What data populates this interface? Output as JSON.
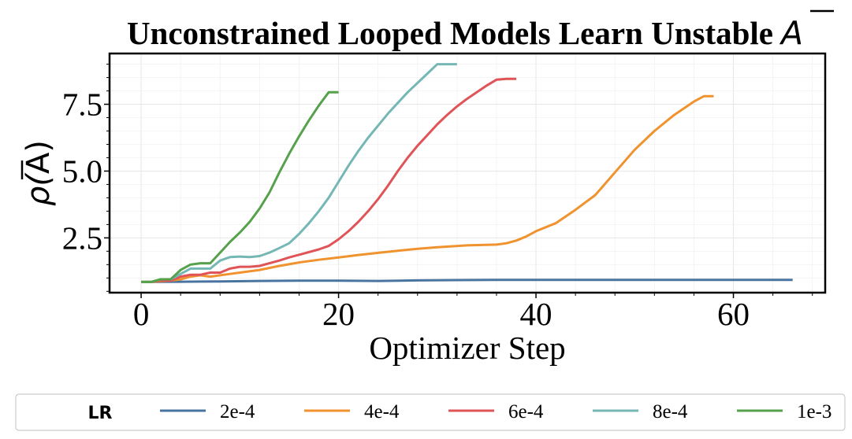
{
  "chart_data": {
    "type": "line",
    "title": "Unconstrained Looped Models Learn Unstable",
    "title_symbol": "A",
    "xlabel": "Optimizer Step",
    "ylabel_prefix": "ρ(",
    "ylabel_symbol": "A",
    "ylabel_suffix": ")",
    "xlim": [
      -3.2,
      69.3
    ],
    "ylim": [
      0.45,
      9.4
    ],
    "xticks": [
      0,
      20,
      40,
      60
    ],
    "xtick_labels": [
      "0",
      "20",
      "40",
      "60"
    ],
    "yticks": [
      2.5,
      5.0,
      7.5
    ],
    "ytick_labels": [
      "2.5",
      "5.0",
      "7.5"
    ],
    "grid": true,
    "legend": {
      "title": "LR",
      "placement": "bottom-center"
    },
    "series": [
      {
        "name": "2e-4",
        "color": "#4a74a0",
        "x": [
          0,
          4,
          8,
          12,
          16,
          20,
          24,
          28,
          32,
          36,
          40,
          44,
          48,
          52,
          56,
          60,
          66
        ],
        "y": [
          0.85,
          0.86,
          0.87,
          0.89,
          0.9,
          0.9,
          0.89,
          0.91,
          0.92,
          0.93,
          0.93,
          0.93,
          0.93,
          0.93,
          0.93,
          0.93,
          0.93
        ]
      },
      {
        "name": "4e-4",
        "color": "#f0922e",
        "x": [
          0,
          1,
          2,
          3,
          4,
          5,
          6,
          7,
          8,
          9,
          10,
          12,
          14,
          16,
          18,
          20,
          22,
          24,
          26,
          28,
          30,
          33,
          36,
          37,
          38,
          39,
          40,
          42,
          44,
          46,
          48,
          50,
          52,
          54,
          56,
          57,
          58
        ],
        "y": [
          0.85,
          0.85,
          0.88,
          0.9,
          0.95,
          1.05,
          1.1,
          1.05,
          1.1,
          1.15,
          1.2,
          1.3,
          1.45,
          1.58,
          1.68,
          1.77,
          1.86,
          1.94,
          2.02,
          2.09,
          2.15,
          2.22,
          2.25,
          2.3,
          2.4,
          2.55,
          2.75,
          3.05,
          3.55,
          4.1,
          4.95,
          5.8,
          6.5,
          7.1,
          7.6,
          7.8,
          7.8
        ]
      },
      {
        "name": "6e-4",
        "color": "#e05357",
        "x": [
          0,
          1,
          2,
          3,
          4,
          5,
          6,
          7,
          8,
          9,
          10,
          11,
          12,
          13,
          14,
          15,
          16,
          17,
          18,
          19,
          20,
          21,
          22,
          23,
          24,
          25,
          26,
          27,
          28,
          29,
          30,
          31,
          32,
          33,
          34,
          35,
          36,
          37,
          38
        ],
        "y": [
          0.85,
          0.85,
          0.9,
          0.9,
          1.05,
          1.12,
          1.12,
          1.2,
          1.2,
          1.35,
          1.42,
          1.42,
          1.45,
          1.55,
          1.65,
          1.77,
          1.87,
          1.97,
          2.07,
          2.2,
          2.45,
          2.75,
          3.1,
          3.5,
          3.95,
          4.45,
          5.0,
          5.5,
          5.95,
          6.35,
          6.75,
          7.1,
          7.42,
          7.7,
          7.95,
          8.2,
          8.42,
          8.45,
          8.45
        ]
      },
      {
        "name": "8e-4",
        "color": "#75b7b4",
        "x": [
          0,
          1,
          2,
          3,
          4,
          5,
          6,
          7,
          8,
          9,
          10,
          11,
          12,
          13,
          14,
          15,
          16,
          17,
          18,
          19,
          20,
          21,
          22,
          23,
          24,
          25,
          26,
          27,
          28,
          29,
          30,
          31,
          32
        ],
        "y": [
          0.85,
          0.85,
          0.95,
          0.95,
          1.15,
          1.35,
          1.35,
          1.35,
          1.65,
          1.78,
          1.8,
          1.78,
          1.82,
          1.95,
          2.12,
          2.3,
          2.65,
          3.05,
          3.5,
          4.0,
          4.6,
          5.2,
          5.75,
          6.25,
          6.7,
          7.15,
          7.55,
          7.95,
          8.3,
          8.65,
          9.0,
          9.0,
          9.0
        ]
      },
      {
        "name": "1e-3",
        "color": "#56a14b",
        "x": [
          0,
          1,
          2,
          3,
          4,
          5,
          6,
          7,
          8,
          9,
          10,
          11,
          12,
          13,
          14,
          15,
          16,
          17,
          18,
          19,
          20
        ],
        "y": [
          0.85,
          0.85,
          0.95,
          0.95,
          1.3,
          1.5,
          1.55,
          1.55,
          1.95,
          2.35,
          2.7,
          3.1,
          3.6,
          4.2,
          4.95,
          5.65,
          6.3,
          6.9,
          7.45,
          7.95,
          7.95
        ]
      }
    ]
  }
}
